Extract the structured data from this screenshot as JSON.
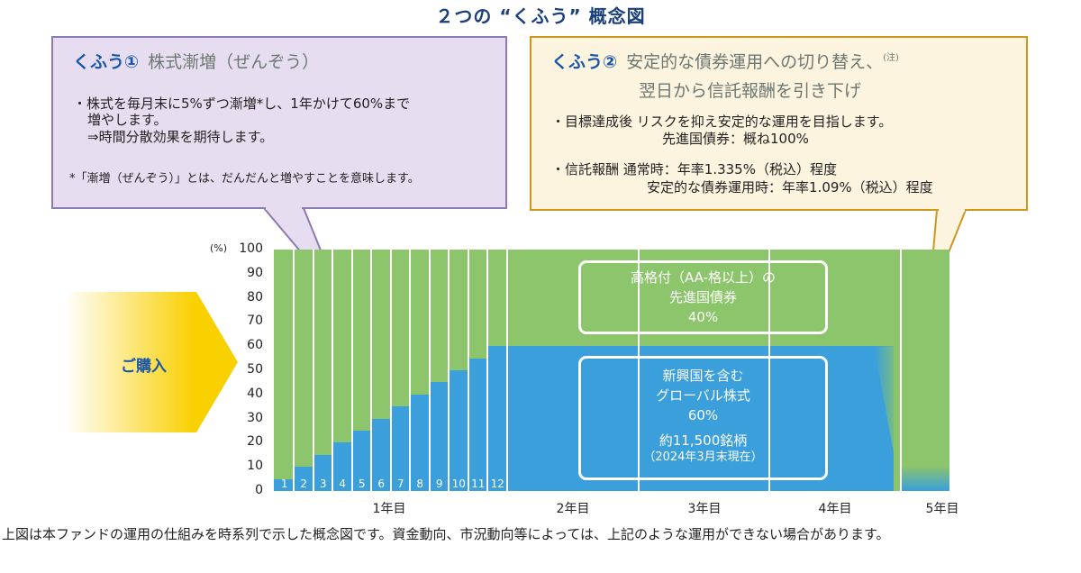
{
  "title": "２つの “くふう” 概念図",
  "bubble1": {
    "kufu_label": "くふう①",
    "heading": "株式漸増（ぜんぞう）",
    "bullet_line1": "・株式を毎月末に5%ずつ漸増*し、1年かけて60%まで",
    "bullet_line2": "増やします。",
    "bullet_line3": "⇒時間分散効果を期待します。",
    "footnote": "*「漸増（ぜんぞう）」とは、だんだんと増やすことを意味します。",
    "bg_color": "#e7ddf0",
    "border_color": "#8e79b0"
  },
  "bubble2": {
    "kufu_label": "くふう②",
    "heading_line1": "安定的な債券運用への切り替え、",
    "note_mark": "(注)",
    "heading_line2": "翌日から信託報酬を引き下げ",
    "bullet1_line1": "・目標達成後 リスクを抑え安定的な運用を目指します。",
    "bullet1_line2": "先進国債券：概ね100%",
    "bullet2_line1": "・信託報酬 通常時：年率1.335%（税込）程度",
    "bullet2_line2": "安定的な債券運用時：年率1.09%（税込）程度",
    "bg_color": "#fdf4df",
    "border_color": "#cf981c"
  },
  "purchase": {
    "label": "ご購入",
    "color": "#f9d000"
  },
  "bond_box": {
    "line1": "高格付（AA-格以上）の",
    "line2": "先進国債券",
    "line3": "40%"
  },
  "equity_box": {
    "line1": "新興国を含む",
    "line2": "グローバル株式",
    "line3": "60%",
    "line4": "約11,500銘柄",
    "line5": "（2024年3月末現在）"
  },
  "footer": "上図は本ファンドの運用の仕組みを時系列で示した概念図です。資金動向、市況動向等によっては、上記のような運用ができない場合があります。",
  "chart_data": {
    "type": "bar",
    "title": "２つの “くふう” 概念図",
    "ylabel": "(%)",
    "ylim": [
      0,
      100
    ],
    "yticks": [
      0,
      10,
      20,
      30,
      40,
      50,
      60,
      70,
      80,
      90,
      100
    ],
    "xlabels": [
      "1年目",
      "2年目",
      "3年目",
      "4年目",
      "5年目"
    ],
    "month_labels": [
      "1",
      "2",
      "3",
      "4",
      "5",
      "6",
      "7",
      "8",
      "9",
      "10",
      "11",
      "12"
    ],
    "series": [
      {
        "name": "グローバル株式",
        "color": "#3a9fdb",
        "values_year1_monthly": [
          5,
          10,
          15,
          20,
          25,
          30,
          35,
          40,
          45,
          50,
          55,
          60
        ],
        "values_year2_4": 60,
        "value_year5": 0
      },
      {
        "name": "先進国債券",
        "color": "#8cc56b",
        "values_year1_monthly": [
          95,
          90,
          85,
          80,
          75,
          70,
          65,
          60,
          55,
          50,
          45,
          40
        ],
        "values_year2_4": 40,
        "value_year5": 100
      }
    ],
    "annotations": [
      "高格付（AA-格以上）の先進国債券 40%",
      "新興国を含むグローバル株式 60%",
      "約11,500銘柄（2024年3月末現在）"
    ]
  }
}
